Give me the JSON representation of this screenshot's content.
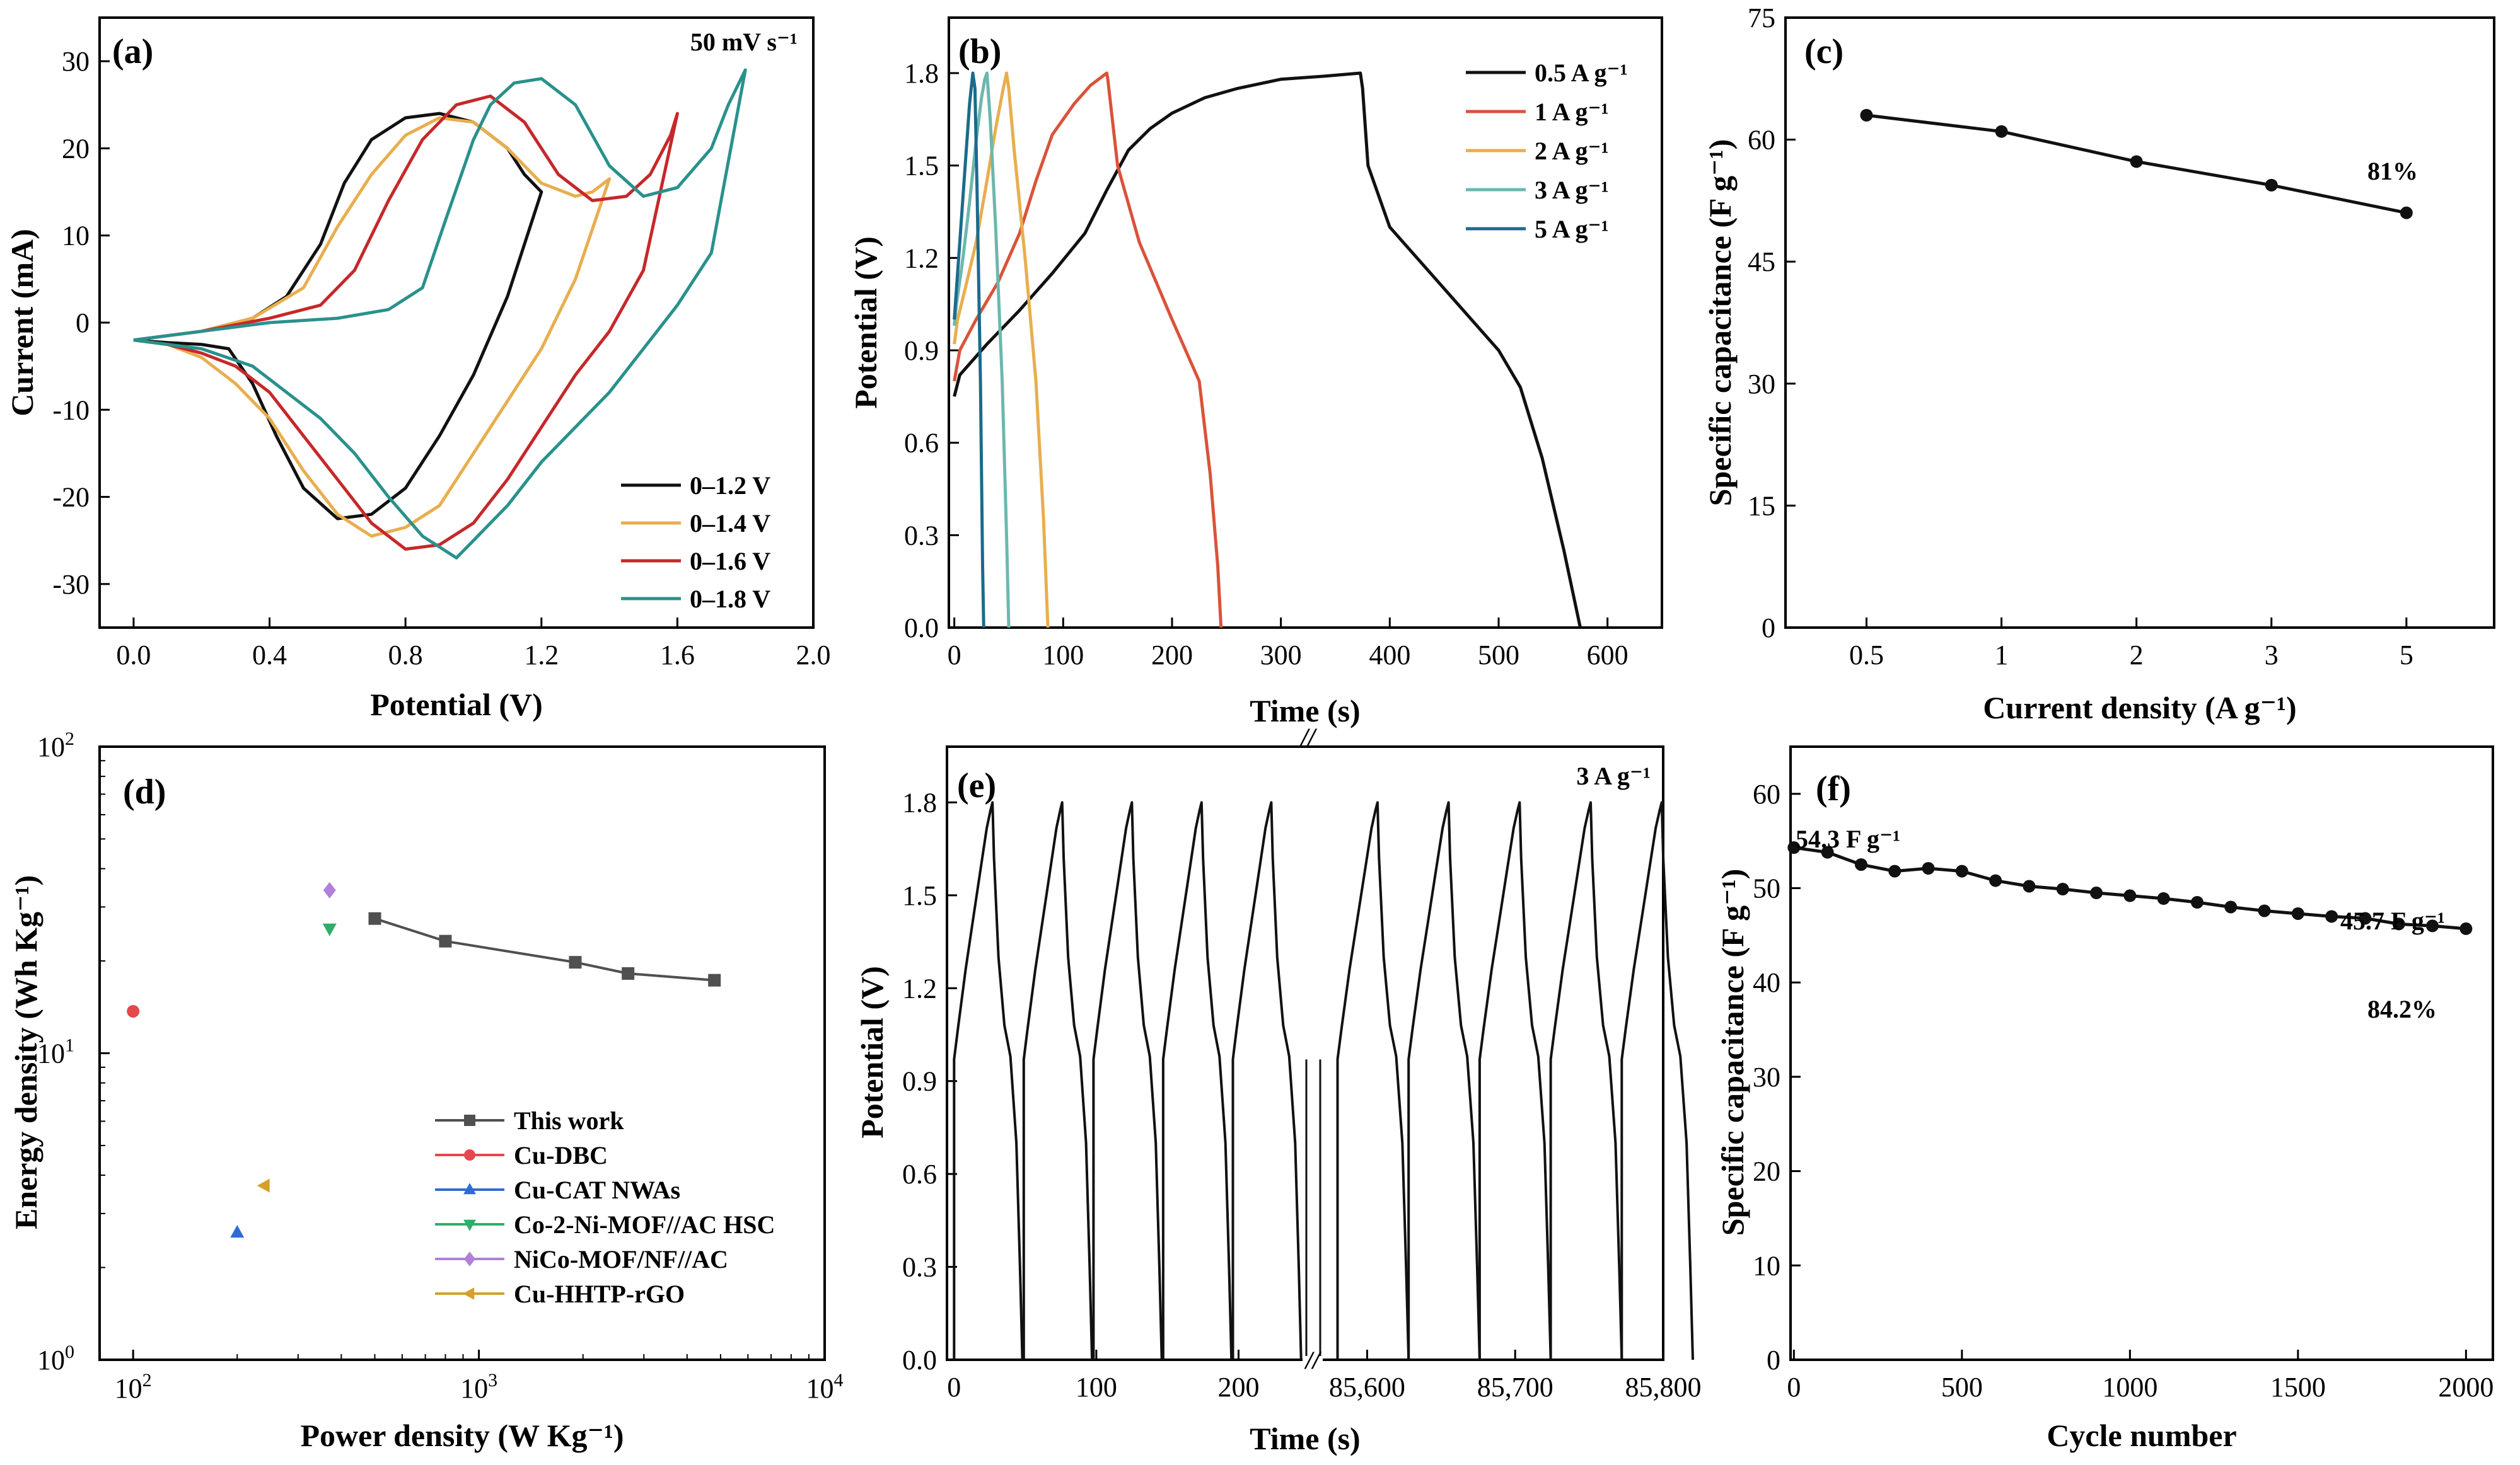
{
  "colors": {
    "black": "#111111",
    "yellow": "#E8AE4E",
    "red": "#C6282A",
    "teal": "#29918C",
    "teal_light": "#6DB7AE",
    "blue_dark": "#1C6A8C",
    "orange_red": "#D9533A",
    "marker_red": "#E5484D",
    "marker_blue": "#2F6BD6",
    "marker_green": "#2EAE6B",
    "marker_purple": "#B080DA",
    "marker_gold": "#D4A12A",
    "grey": "#505050"
  },
  "chart_data": [
    {
      "id": "a",
      "panel_label": "(a)",
      "type": "line",
      "annotation": "50 mV s⁻¹",
      "xlabel": "Potential (V)",
      "ylabel": "Current (mA)",
      "xlim": [
        -0.1,
        2.0
      ],
      "ylim": [
        -35,
        35
      ],
      "xticks": [
        0.0,
        0.4,
        0.8,
        1.2,
        1.6,
        2.0
      ],
      "xtick_labels": [
        "0.0",
        "0.4",
        "0.8",
        "1.2",
        "1.6",
        "2.0"
      ],
      "yticks": [
        -30,
        -20,
        -10,
        0,
        10,
        20,
        30
      ],
      "ytick_labels": [
        "-30",
        "-20",
        "-10",
        "0",
        "10",
        "20",
        "30"
      ],
      "legend_position": "bottom-right",
      "series": [
        {
          "name": "0–1.2 V",
          "color_key": "black",
          "x": [
            0.0,
            0.2,
            0.35,
            0.45,
            0.55,
            0.62,
            0.7,
            0.8,
            0.9,
            1.0,
            1.1,
            1.15,
            1.2,
            1.2,
            1.1,
            1.0,
            0.9,
            0.8,
            0.7,
            0.6,
            0.5,
            0.42,
            0.35,
            0.28,
            0.2,
            0.1,
            0.0
          ],
          "y": [
            -2.0,
            -1.0,
            0.5,
            3.0,
            9.0,
            16.0,
            21.0,
            23.5,
            24.0,
            23.0,
            20.0,
            17.0,
            15.0,
            15.0,
            3.0,
            -6.0,
            -13.0,
            -19.0,
            -22.0,
            -22.5,
            -19.0,
            -13.0,
            -7.0,
            -3.0,
            -2.5,
            -2.3,
            -2.0
          ]
        },
        {
          "name": "0–1.4 V",
          "color_key": "yellow",
          "x": [
            0.0,
            0.2,
            0.35,
            0.5,
            0.6,
            0.7,
            0.8,
            0.9,
            1.0,
            1.1,
            1.2,
            1.3,
            1.35,
            1.4,
            1.4,
            1.3,
            1.2,
            1.1,
            1.0,
            0.9,
            0.8,
            0.7,
            0.6,
            0.5,
            0.4,
            0.3,
            0.2,
            0.1,
            0.0
          ],
          "y": [
            -2.0,
            -1.0,
            0.5,
            4.0,
            11.0,
            17.0,
            21.5,
            23.5,
            23.0,
            20.0,
            16.0,
            14.5,
            15.0,
            16.5,
            16.5,
            5.0,
            -3.0,
            -9.0,
            -15.0,
            -21.0,
            -23.5,
            -24.5,
            -22.0,
            -17.0,
            -11.0,
            -7.0,
            -4.0,
            -2.5,
            -2.0
          ]
        },
        {
          "name": "0–1.6 V",
          "color_key": "red",
          "x": [
            0.0,
            0.2,
            0.4,
            0.55,
            0.65,
            0.75,
            0.85,
            0.95,
            1.05,
            1.15,
            1.25,
            1.35,
            1.45,
            1.52,
            1.58,
            1.6,
            1.6,
            1.5,
            1.4,
            1.3,
            1.2,
            1.1,
            1.0,
            0.9,
            0.8,
            0.7,
            0.6,
            0.5,
            0.4,
            0.3,
            0.2,
            0.1,
            0.0
          ],
          "y": [
            -2.0,
            -1.0,
            0.5,
            2.0,
            6.0,
            14.0,
            21.0,
            25.0,
            26.0,
            23.0,
            17.0,
            14.0,
            14.5,
            17.0,
            21.5,
            24.0,
            24.0,
            6.0,
            -1.0,
            -6.0,
            -12.0,
            -18.0,
            -23.0,
            -25.5,
            -26.0,
            -23.0,
            -18.0,
            -13.0,
            -8.0,
            -5.0,
            -3.5,
            -2.5,
            -2.0
          ]
        },
        {
          "name": "0–1.8 V",
          "color_key": "teal",
          "x": [
            0.0,
            0.2,
            0.4,
            0.6,
            0.75,
            0.85,
            0.92,
            1.0,
            1.05,
            1.12,
            1.2,
            1.3,
            1.4,
            1.5,
            1.6,
            1.7,
            1.75,
            1.8,
            1.8,
            1.7,
            1.6,
            1.5,
            1.4,
            1.3,
            1.2,
            1.1,
            1.0,
            0.95,
            0.85,
            0.75,
            0.65,
            0.55,
            0.45,
            0.35,
            0.2,
            0.1,
            0.0
          ],
          "y": [
            -2.0,
            -1.0,
            0.0,
            0.5,
            1.5,
            4.0,
            12.0,
            21.0,
            25.0,
            27.5,
            28.0,
            25.0,
            18.0,
            14.5,
            15.5,
            20.0,
            25.0,
            29.0,
            29.0,
            8.0,
            2.0,
            -3.0,
            -8.0,
            -12.0,
            -16.0,
            -21.0,
            -25.0,
            -27.0,
            -24.5,
            -20.0,
            -15.0,
            -11.0,
            -8.0,
            -5.0,
            -3.0,
            -2.5,
            -2.0
          ]
        }
      ]
    },
    {
      "id": "b",
      "panel_label": "(b)",
      "type": "line",
      "xlabel": "Time (s)",
      "ylabel": "Potential (V)",
      "xlim": [
        -5,
        650
      ],
      "ylim": [
        0,
        1.98
      ],
      "xticks": [
        0,
        100,
        200,
        300,
        400,
        500,
        600
      ],
      "xtick_labels": [
        "0",
        "100",
        "200",
        "300",
        "400",
        "500",
        "600"
      ],
      "yticks": [
        0.0,
        0.3,
        0.6,
        0.9,
        1.2,
        1.5,
        1.8
      ],
      "ytick_labels": [
        "0.0",
        "0.3",
        "0.6",
        "0.9",
        "1.2",
        "1.5",
        "1.8"
      ],
      "legend_position": "top-right",
      "series": [
        {
          "name": "0.5 A g⁻¹",
          "color_key": "black",
          "x": [
            0,
            5,
            30,
            60,
            90,
            120,
            140,
            160,
            180,
            200,
            230,
            260,
            300,
            340,
            373,
            375,
            380,
            400,
            450,
            500,
            520,
            540,
            560,
            575
          ],
          "y": [
            0.75,
            0.82,
            0.92,
            1.03,
            1.15,
            1.28,
            1.42,
            1.55,
            1.62,
            1.67,
            1.72,
            1.75,
            1.78,
            1.79,
            1.8,
            1.75,
            1.5,
            1.3,
            1.1,
            0.9,
            0.78,
            0.55,
            0.25,
            0.0
          ]
        },
        {
          "name": "1 A g⁻¹",
          "color_key": "orange_red",
          "x": [
            0,
            5,
            20,
            40,
            60,
            75,
            90,
            110,
            125,
            140,
            141,
            150,
            170,
            200,
            225,
            235,
            242,
            245
          ],
          "y": [
            0.8,
            0.9,
            1.0,
            1.12,
            1.28,
            1.45,
            1.6,
            1.7,
            1.76,
            1.8,
            1.78,
            1.5,
            1.25,
            1.0,
            0.8,
            0.5,
            0.2,
            0.0
          ]
        },
        {
          "name": "2 A g⁻¹",
          "color_key": "yellow",
          "x": [
            0,
            3,
            10,
            20,
            30,
            38,
            45,
            48,
            50,
            55,
            65,
            75,
            82,
            86
          ],
          "y": [
            0.92,
            1.0,
            1.1,
            1.25,
            1.45,
            1.62,
            1.75,
            1.8,
            1.75,
            1.55,
            1.2,
            0.8,
            0.35,
            0.0
          ]
        },
        {
          "name": "3 A g⁻¹",
          "color_key": "teal_light",
          "x": [
            0,
            2,
            8,
            14,
            20,
            25,
            28,
            30,
            33,
            38,
            44,
            48,
            50
          ],
          "y": [
            0.98,
            1.05,
            1.2,
            1.38,
            1.58,
            1.72,
            1.78,
            1.8,
            1.65,
            1.3,
            0.8,
            0.3,
            0.0
          ]
        },
        {
          "name": "5 A g⁻¹",
          "color_key": "blue_dark",
          "x": [
            0,
            2,
            6,
            10,
            14,
            17,
            19,
            21,
            24,
            26,
            27
          ],
          "y": [
            1.0,
            1.1,
            1.3,
            1.5,
            1.7,
            1.8,
            1.75,
            1.4,
            0.8,
            0.2,
            0.0
          ]
        }
      ]
    },
    {
      "id": "c",
      "panel_label": "(c)",
      "type": "line",
      "annotation": "81%",
      "xlabel": "Current density (A g⁻¹)",
      "ylabel": "Specific capacitance (F g⁻¹)",
      "categories": [
        "0.5",
        "1",
        "2",
        "3",
        "5"
      ],
      "values": [
        63.0,
        61.0,
        57.3,
        54.4,
        51.0
      ],
      "ylim": [
        0,
        75
      ],
      "yticks": [
        0,
        15,
        30,
        45,
        60,
        75
      ],
      "ytick_labels": [
        "0",
        "15",
        "30",
        "45",
        "60",
        "75"
      ]
    },
    {
      "id": "d",
      "panel_label": "(d)",
      "type": "scatter",
      "xlabel": "Power density (W Kg⁻¹)",
      "ylabel": "Energy density (Wh Kg⁻¹)",
      "xscale": "log",
      "yscale": "log",
      "xlim": [
        80,
        10000
      ],
      "ylim": [
        1,
        100
      ],
      "xtick_labels": [
        "10",
        "10",
        "10"
      ],
      "xtick_exponents": [
        "2",
        "3",
        "4"
      ],
      "ytick_labels": [
        "10",
        "10",
        "10"
      ],
      "ytick_exponents": [
        "0",
        "1",
        "2"
      ],
      "legend_position": "bottom-center",
      "series": [
        {
          "name": "This work",
          "marker": "square",
          "color_key": "grey",
          "connected": true,
          "x": [
            500,
            800,
            1900,
            2700,
            4800
          ],
          "y": [
            27.5,
            23.2,
            19.8,
            18.2,
            17.3
          ]
        },
        {
          "name": "Cu-DBC",
          "marker": "circle",
          "color_key": "marker_red",
          "x": [
            100
          ],
          "y": [
            13.7
          ]
        },
        {
          "name": "Cu-CAT NWAs",
          "marker": "triangle-up",
          "color_key": "marker_blue",
          "x": [
            200
          ],
          "y": [
            2.6
          ]
        },
        {
          "name": "Co-2-Ni-MOF//AC HSC",
          "marker": "triangle-down",
          "color_key": "marker_green",
          "x": [
            370
          ],
          "y": [
            25.5
          ]
        },
        {
          "name": "NiCo-MOF/NF//AC",
          "marker": "diamond",
          "color_key": "marker_purple",
          "x": [
            370
          ],
          "y": [
            34.0
          ]
        },
        {
          "name": "Cu-HHTP-rGO",
          "marker": "triangle-left",
          "color_key": "marker_gold",
          "x": [
            240
          ],
          "y": [
            3.7
          ]
        }
      ]
    },
    {
      "id": "e",
      "panel_label": "(e)",
      "type": "line",
      "annotation": "3 A g⁻¹",
      "xlabel": "Time (s)",
      "ylabel": "Potential (V)",
      "broken_x_axis": true,
      "x_break_mark": "//",
      "ylim": [
        0,
        1.98
      ],
      "yticks": [
        0.0,
        0.3,
        0.6,
        0.9,
        1.2,
        1.5,
        1.8
      ],
      "ytick_labels": [
        "0.0",
        "0.3",
        "0.6",
        "0.9",
        "1.2",
        "1.5",
        "1.8"
      ],
      "segment_1": {
        "xlim": [
          -5,
          245
        ],
        "xticks": [
          0,
          100,
          200
        ],
        "xtick_labels": [
          "0",
          "100",
          "200"
        ],
        "cycle_start_x": [
          0,
          49,
          98,
          147,
          196
        ]
      },
      "segment_2": {
        "xlim": [
          85570,
          85800
        ],
        "xticks": [
          85600,
          85700,
          85800
        ],
        "xtick_labels": [
          "85,600",
          "85,700",
          "85,800"
        ],
        "cycle_start_x": [
          85580,
          85628,
          85676,
          85724,
          85772
        ]
      },
      "cycle": {
        "charge_time": 27,
        "discharge_time": 21,
        "start_potential": 0.97,
        "peak_potential": 1.8
      }
    },
    {
      "id": "f",
      "panel_label": "(f)",
      "type": "line",
      "annotations": [
        "54.3 F g⁻¹",
        "45.7 F g⁻¹",
        "84.2%"
      ],
      "xlabel": "Cycle number",
      "ylabel": "Specific capacitance (F g⁻¹)",
      "xlim": [
        -10,
        2080
      ],
      "ylim": [
        0,
        65
      ],
      "xticks": [
        0,
        500,
        1000,
        1500,
        2000
      ],
      "xtick_labels": [
        "0",
        "500",
        "1000",
        "1500",
        "2000"
      ],
      "yticks": [
        0,
        10,
        20,
        30,
        40,
        50,
        60
      ],
      "ytick_labels": [
        "0",
        "10",
        "20",
        "30",
        "40",
        "50",
        "60"
      ],
      "x": [
        0,
        100,
        200,
        300,
        400,
        500,
        600,
        700,
        800,
        900,
        1000,
        1100,
        1200,
        1300,
        1400,
        1500,
        1600,
        1700,
        1800,
        1900,
        2000
      ],
      "values": [
        54.3,
        53.8,
        52.5,
        51.8,
        52.1,
        51.8,
        50.8,
        50.2,
        49.9,
        49.5,
        49.2,
        48.9,
        48.5,
        48.0,
        47.6,
        47.3,
        47.0,
        46.8,
        46.2,
        46.0,
        45.7
      ]
    }
  ]
}
